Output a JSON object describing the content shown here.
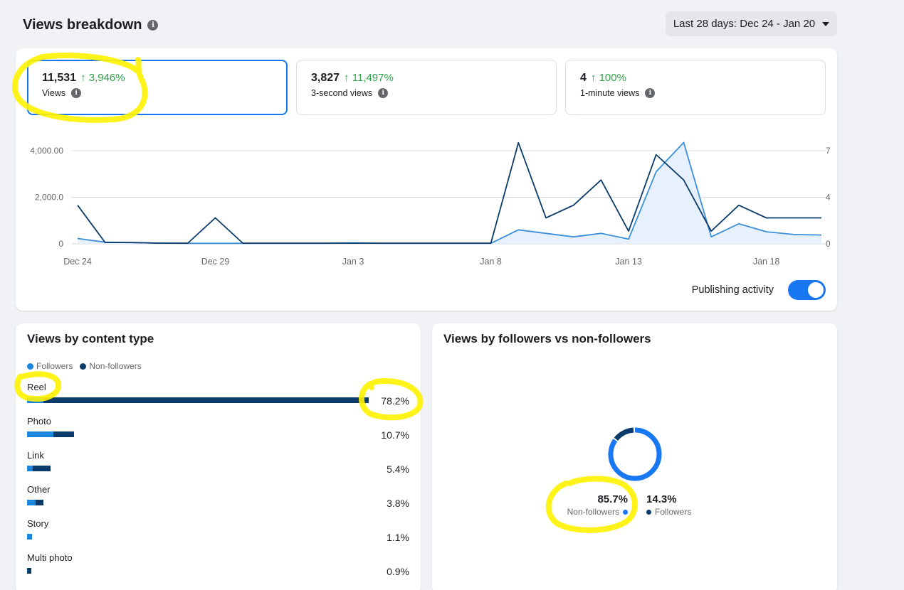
{
  "header": {
    "title": "Views breakdown"
  },
  "date_range": {
    "label": "Last 28 days: Dec 24 - Jan 20"
  },
  "metrics": [
    {
      "value": "11,531",
      "delta": "↑ 3,946%",
      "label": "Views"
    },
    {
      "value": "3,827",
      "delta": "↑ 11,497%",
      "label": "3-second views"
    },
    {
      "value": "4",
      "delta": "↑ 100%",
      "label": "1-minute views"
    }
  ],
  "publishing": {
    "label": "Publishing activity",
    "on": true
  },
  "content_type": {
    "title": "Views by content type",
    "legend": [
      "Followers",
      "Non-followers"
    ],
    "rows": [
      {
        "label": "Reel",
        "pct": "78.2%",
        "followers": 3.7,
        "nonfollowers": 74.5
      },
      {
        "label": "Photo",
        "pct": "10.7%",
        "followers": 6.1,
        "nonfollowers": 4.6
      },
      {
        "label": "Link",
        "pct": "5.4%",
        "followers": 1.3,
        "nonfollowers": 4.1
      },
      {
        "label": "Other",
        "pct": "3.8%",
        "followers": 2.0,
        "nonfollowers": 1.8
      },
      {
        "label": "Story",
        "pct": "1.1%",
        "followers": 1.1,
        "nonfollowers": 0
      },
      {
        "label": "Multi photo",
        "pct": "0.9%",
        "followers": 0,
        "nonfollowers": 0.9
      }
    ]
  },
  "followers_split": {
    "title": "Views by followers vs non-followers",
    "non_followers": {
      "pct": "85.7%",
      "label": "Non-followers",
      "value": 85.7
    },
    "followers": {
      "pct": "14.3%",
      "label": "Followers",
      "value": 14.3
    }
  },
  "colors": {
    "accent": "#1877f2",
    "followers": "#1b86e0",
    "non_followers": "#0a3b6b",
    "positive": "#31a24c",
    "highlight": "#fff200"
  },
  "chart_data": {
    "type": "line",
    "x_tick_labels": [
      "Dec 24",
      "Dec 29",
      "Jan 3",
      "Jan 8",
      "Jan 13",
      "Jan 18"
    ],
    "y_left_ticks": [
      "0",
      "2,000.0",
      "4,000.00"
    ],
    "y_right_ticks": [
      "0",
      "4",
      "7"
    ],
    "x": [
      "Dec 24",
      "Dec 25",
      "Dec 26",
      "Dec 27",
      "Dec 28",
      "Dec 29",
      "Dec 30",
      "Dec 31",
      "Jan 1",
      "Jan 2",
      "Jan 3",
      "Jan 4",
      "Jan 5",
      "Jan 6",
      "Jan 7",
      "Jan 8",
      "Jan 9",
      "Jan 10",
      "Jan 11",
      "Jan 12",
      "Jan 13",
      "Jan 14",
      "Jan 15",
      "Jan 16",
      "Jan 17",
      "Jan 18",
      "Jan 19",
      "Jan 20"
    ],
    "ylim_left": [
      0,
      4000
    ],
    "ylim_right": [
      0,
      7
    ],
    "series": [
      {
        "axis": "left",
        "values": [
          230,
          70,
          50,
          30,
          20,
          20,
          20,
          20,
          20,
          20,
          40,
          20,
          20,
          20,
          20,
          20,
          600,
          450,
          300,
          450,
          200,
          3100,
          4350,
          300,
          860,
          520,
          400,
          380
        ]
      },
      {
        "axis": "right",
        "values": [
          2.9,
          0.1,
          0.1,
          0.05,
          0.05,
          1.95,
          0.05,
          0.05,
          0.05,
          0.05,
          0.05,
          0.05,
          0.05,
          0.05,
          0.05,
          0.05,
          7.6,
          1.95,
          2.9,
          4.8,
          0.95,
          6.7,
          4.8,
          0.95,
          2.9,
          1.95,
          1.95,
          1.95
        ]
      }
    ]
  }
}
